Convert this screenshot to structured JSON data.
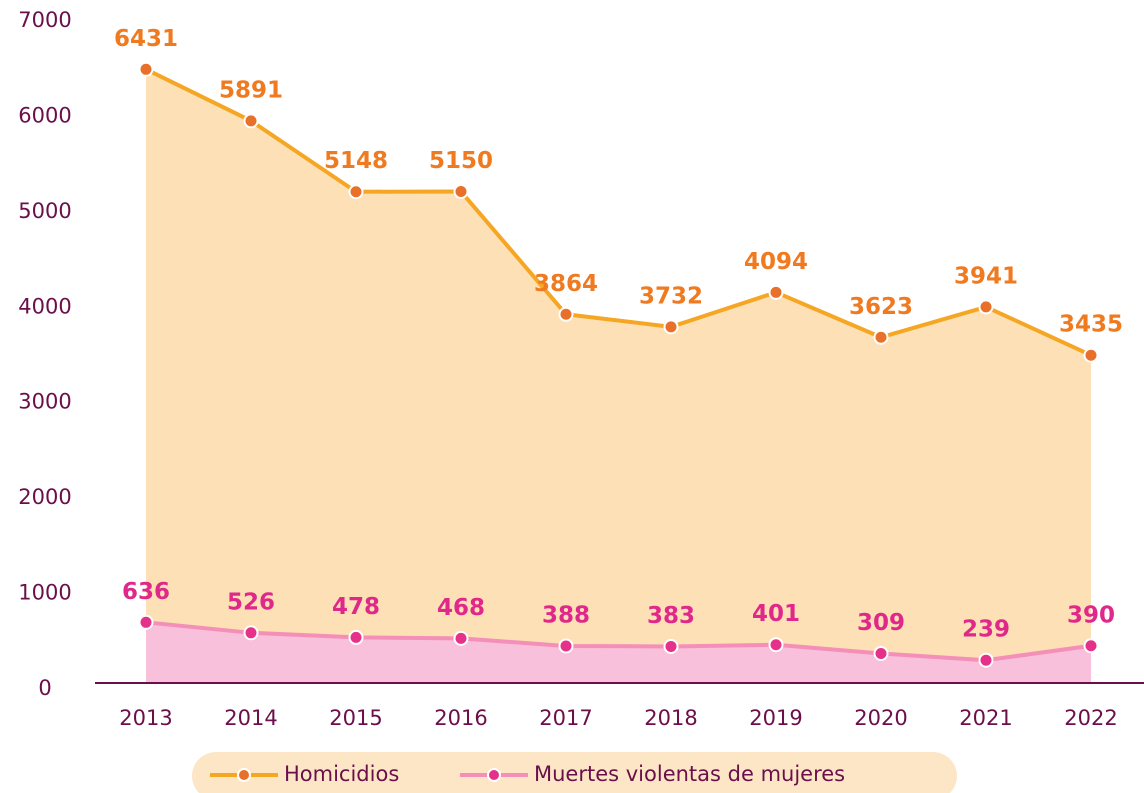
{
  "chart_data": {
    "type": "area",
    "categories": [
      "2013",
      "2014",
      "2015",
      "2016",
      "2017",
      "2018",
      "2019",
      "2020",
      "2021",
      "2022"
    ],
    "series": [
      {
        "name": "Homicidios",
        "color": "#f5a623",
        "marker_color": "#e8702a",
        "label_color": "#f07a1f",
        "fill": "#fde0b6",
        "values": [
          6431,
          5891,
          5148,
          5150,
          3864,
          3732,
          4094,
          3623,
          3941,
          3435
        ]
      },
      {
        "name": "Muertes violentas de mujeres",
        "color": "#f48fb8",
        "marker_color": "#e6318a",
        "label_color": "#e0288a",
        "fill": "#f8c0da",
        "values": [
          636,
          526,
          478,
          468,
          388,
          383,
          401,
          309,
          239,
          390
        ]
      }
    ],
    "ylim": [
      0,
      7000
    ],
    "yticks": [
      0,
      1000,
      2000,
      3000,
      4000,
      5000,
      6000,
      7000
    ],
    "grid": false,
    "legend": "bottom"
  }
}
